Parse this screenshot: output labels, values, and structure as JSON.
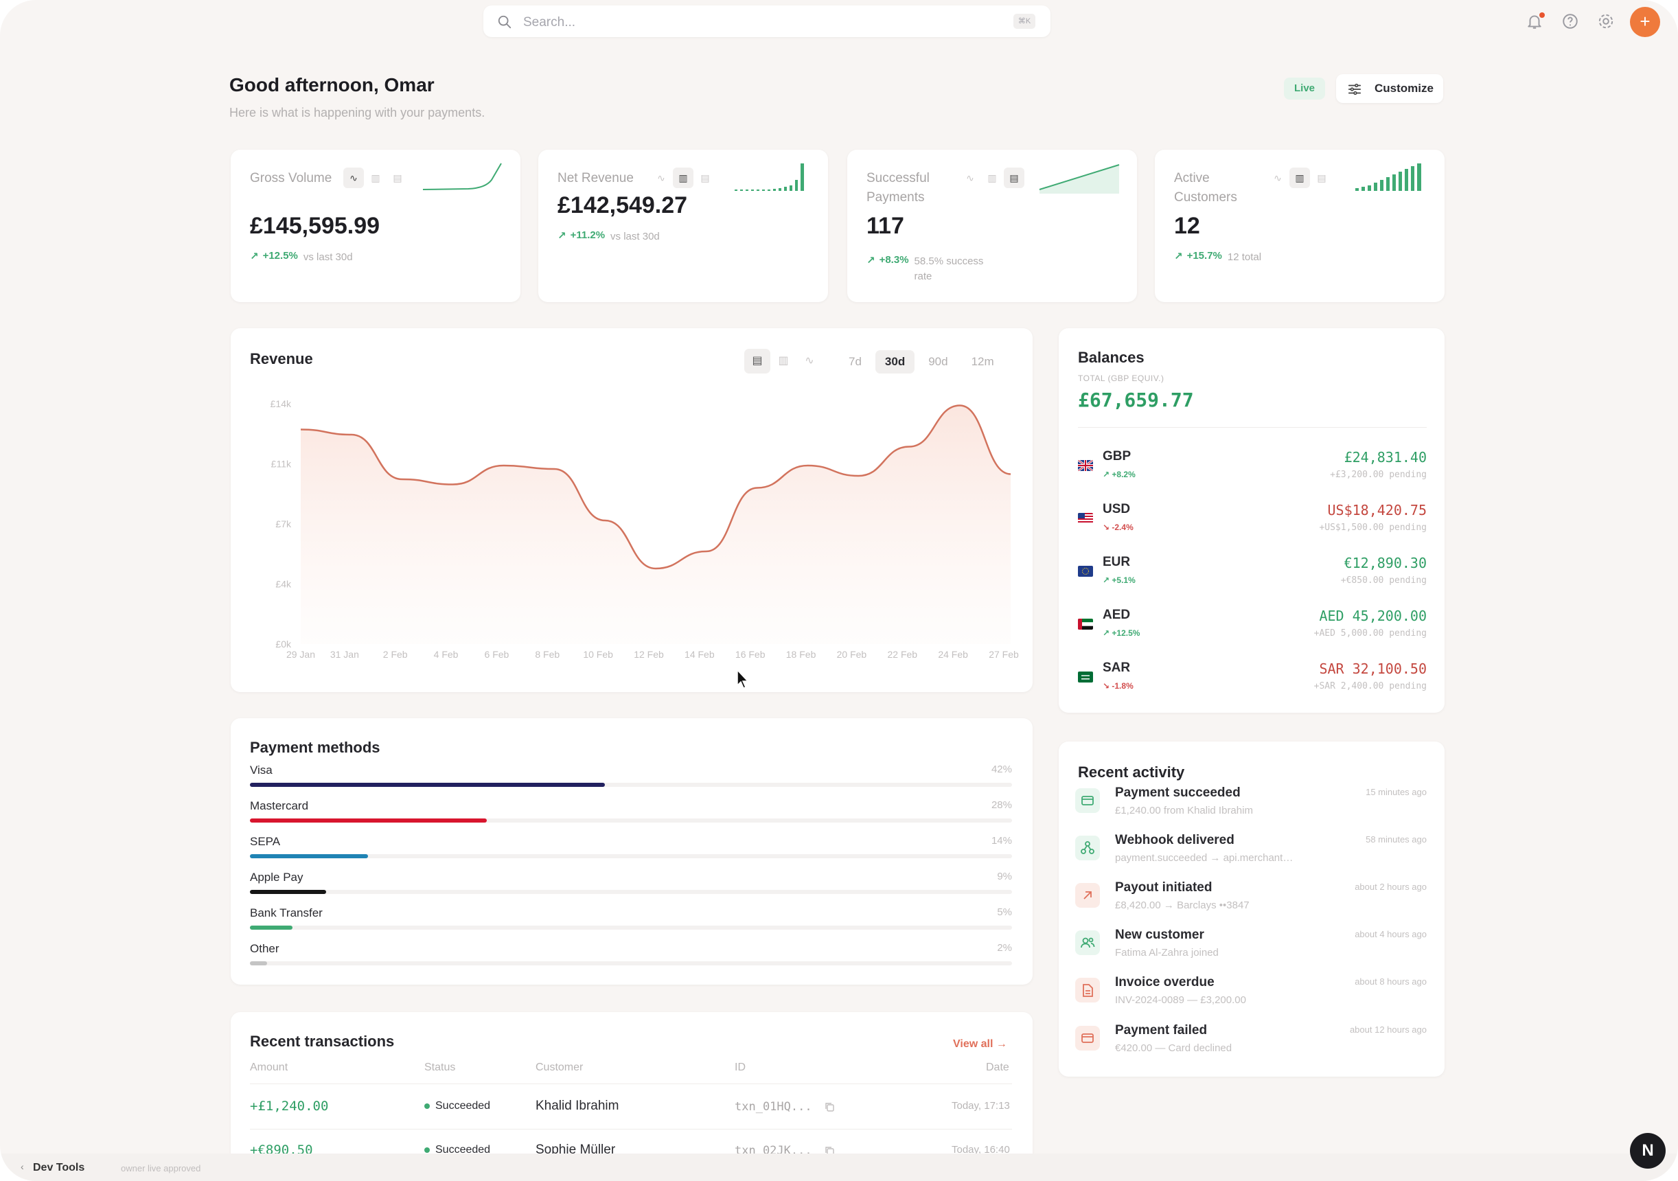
{
  "search": {
    "placeholder": "Search...",
    "shortcut": "⌘K"
  },
  "header": {
    "greeting": "Good afternoon, Omar",
    "subtitle": "Here is what is happening with your payments.",
    "live_label": "Live",
    "customize_label": "Customize"
  },
  "avatar": {
    "initial": "+"
  },
  "kpis": [
    {
      "label": "Gross Volume",
      "value": "£145,595.99",
      "delta": "+12.5%",
      "note": "vs last 30d"
    },
    {
      "label": "Net Revenue",
      "value": "£142,549.27",
      "delta": "+11.2%",
      "note": "vs last 30d"
    },
    {
      "label": "Successful Payments",
      "value": "117",
      "delta": "+8.3%",
      "note": "58.5% success rate"
    },
    {
      "label": "Active Customers",
      "value": "12",
      "delta": "+15.7%",
      "note": "12 total"
    }
  ],
  "revenue": {
    "title": "Revenue",
    "ranges": [
      "7d",
      "30d",
      "90d",
      "12m"
    ],
    "active_range": "30d"
  },
  "chart_data": {
    "type": "area",
    "title": "Revenue",
    "y_ticks": [
      "£14k",
      "£11k",
      "£7k",
      "£4k",
      "£0k"
    ],
    "ylim": [
      0,
      14000
    ],
    "x": [
      "29 Jan",
      "31 Jan",
      "2 Feb",
      "4 Feb",
      "6 Feb",
      "8 Feb",
      "10 Feb",
      "12 Feb",
      "14 Feb",
      "16 Feb",
      "18 Feb",
      "20 Feb",
      "22 Feb",
      "24 Feb",
      "27 Feb"
    ],
    "values": [
      12500,
      12200,
      9600,
      9300,
      10400,
      10200,
      7200,
      4400,
      5400,
      9100,
      10400,
      9800,
      11500,
      13900,
      9900
    ],
    "grid": false
  },
  "balances": {
    "title": "Balances",
    "total_label": "TOTAL (GBP EQUIV.)",
    "total": "£67,659.77",
    "rows": [
      {
        "currency": "GBP",
        "change": "+8.2%",
        "amount": "£24,831.40",
        "pending": "+£3,200.00 pending",
        "up": true
      },
      {
        "currency": "USD",
        "change": "-2.4%",
        "amount": "US$18,420.75",
        "pending": "+US$1,500.00 pending",
        "up": false
      },
      {
        "currency": "EUR",
        "change": "+5.1%",
        "amount": "€12,890.30",
        "pending": "+€850.00 pending",
        "up": true
      },
      {
        "currency": "AED",
        "change": "+12.5%",
        "amount": "AED 45,200.00",
        "pending": "+AED 5,000.00 pending",
        "up": true
      },
      {
        "currency": "SAR",
        "change": "-1.8%",
        "amount": "SAR 32,100.50",
        "pending": "+SAR 2,400.00 pending",
        "up": false
      }
    ]
  },
  "payment_methods": {
    "title": "Payment methods",
    "items": [
      {
        "name": "Visa",
        "percent": "42%",
        "share": 42,
        "color": "#22215f"
      },
      {
        "name": "Mastercard",
        "percent": "28%",
        "share": 28,
        "color": "#d8162e"
      },
      {
        "name": "SEPA",
        "percent": "14%",
        "share": 14,
        "color": "#1f83b4"
      },
      {
        "name": "Apple Pay",
        "percent": "9%",
        "share": 9,
        "color": "#151515"
      },
      {
        "name": "Bank Transfer",
        "percent": "5%",
        "share": 5,
        "color": "#3faa73"
      },
      {
        "name": "Other",
        "percent": "2%",
        "share": 2,
        "color": "#c4c4c4"
      }
    ]
  },
  "activity": {
    "title": "Recent activity",
    "items": [
      {
        "title": "Payment succeeded",
        "sub": "£1,240.00 from Khalid Ibrahim",
        "time": "15 minutes ago",
        "icon": "card-icon"
      },
      {
        "title": "Webhook delivered",
        "sub": "payment.succeeded → api.merchant.c...",
        "time": "58 minutes ago",
        "icon": "webhook-icon"
      },
      {
        "title": "Payout initiated",
        "sub": "£8,420.00 → Barclays ••3847",
        "time": "about 2 hours ago",
        "icon": "arrow-up-right-icon"
      },
      {
        "title": "New customer",
        "sub": "Fatima Al-Zahra joined",
        "time": "about 4 hours ago",
        "icon": "users-icon"
      },
      {
        "title": "Invoice overdue",
        "sub": "INV-2024-0089 — £3,200.00",
        "time": "about 8 hours ago",
        "icon": "file-icon"
      },
      {
        "title": "Payment failed",
        "sub": "€420.00 — Card declined",
        "time": "about 12 hours ago",
        "icon": "card-icon"
      }
    ]
  },
  "transactions": {
    "title": "Recent transactions",
    "view_all": "View all →",
    "columns": [
      "Amount",
      "Status",
      "Customer",
      "ID",
      "Date"
    ],
    "rows": [
      {
        "amount": "+£1,240.00",
        "status": "Succeeded",
        "customer": "Khalid Ibrahim",
        "id": "txn_01HQ...",
        "date": "Today, 17:13"
      },
      {
        "amount": "+€890.50",
        "status": "Succeeded",
        "customer": "Sophie Müller",
        "id": "txn_02JK...",
        "date": "Today, 16:40"
      }
    ]
  },
  "devtools": {
    "label": "Dev Tools",
    "meta": "owner  live  approved"
  },
  "fab": {
    "label": "N"
  }
}
